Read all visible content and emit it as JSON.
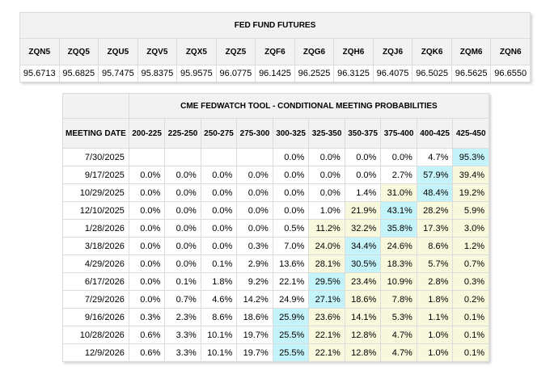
{
  "futures": {
    "title": "FED FUND FUTURES",
    "contracts": [
      {
        "code": "ZQN5",
        "price": "95.6713"
      },
      {
        "code": "ZQQ5",
        "price": "95.6825"
      },
      {
        "code": "ZQU5",
        "price": "95.7475"
      },
      {
        "code": "ZQV5",
        "price": "95.8375"
      },
      {
        "code": "ZQX5",
        "price": "95.9575"
      },
      {
        "code": "ZQZ5",
        "price": "96.0775"
      },
      {
        "code": "ZQF6",
        "price": "96.1425"
      },
      {
        "code": "ZQG6",
        "price": "96.2525"
      },
      {
        "code": "ZQH6",
        "price": "96.3125"
      },
      {
        "code": "ZQJ6",
        "price": "96.4075"
      },
      {
        "code": "ZQK6",
        "price": "96.5025"
      },
      {
        "code": "ZQM6",
        "price": "96.5625"
      },
      {
        "code": "ZQN6",
        "price": "96.6550"
      }
    ]
  },
  "probabilities": {
    "title": "CME FEDWATCH TOOL - CONDITIONAL MEETING PROBABILITIES",
    "date_header": "MEETING DATE",
    "ranges": [
      "200-225",
      "225-250",
      "250-275",
      "275-300",
      "300-325",
      "325-350",
      "350-375",
      "375-400",
      "400-425",
      "425-450"
    ],
    "colors": {
      "highlight_blue": "#c4f3f9",
      "highlight_yellow": "#f8f8dc",
      "header_gray": "#f2f2f2"
    },
    "rows": [
      {
        "date": "7/30/2025",
        "values": [
          "",
          "",
          "",
          "",
          "0.0%",
          "0.0%",
          "0.0%",
          "0.0%",
          "4.7%",
          "95.3%"
        ],
        "shade": [
          "w",
          "w",
          "w",
          "w",
          "w",
          "w",
          "w",
          "w",
          "w",
          "b"
        ]
      },
      {
        "date": "9/17/2025",
        "values": [
          "0.0%",
          "0.0%",
          "0.0%",
          "0.0%",
          "0.0%",
          "0.0%",
          "0.0%",
          "2.7%",
          "57.9%",
          "39.4%"
        ],
        "shade": [
          "w",
          "w",
          "w",
          "w",
          "w",
          "w",
          "w",
          "w",
          "b",
          "y"
        ]
      },
      {
        "date": "10/29/2025",
        "values": [
          "0.0%",
          "0.0%",
          "0.0%",
          "0.0%",
          "0.0%",
          "0.0%",
          "1.4%",
          "31.0%",
          "48.4%",
          "19.2%"
        ],
        "shade": [
          "w",
          "w",
          "w",
          "w",
          "w",
          "w",
          "w",
          "y",
          "b",
          "y"
        ]
      },
      {
        "date": "12/10/2025",
        "values": [
          "0.0%",
          "0.0%",
          "0.0%",
          "0.0%",
          "0.0%",
          "1.0%",
          "21.9%",
          "43.1%",
          "28.2%",
          "5.9%"
        ],
        "shade": [
          "w",
          "w",
          "w",
          "w",
          "w",
          "w",
          "y",
          "b",
          "y",
          "y"
        ]
      },
      {
        "date": "1/28/2026",
        "values": [
          "0.0%",
          "0.0%",
          "0.0%",
          "0.0%",
          "0.5%",
          "11.2%",
          "32.2%",
          "35.8%",
          "17.3%",
          "3.0%"
        ],
        "shade": [
          "w",
          "w",
          "w",
          "w",
          "w",
          "y",
          "y",
          "b",
          "y",
          "y"
        ]
      },
      {
        "date": "3/18/2026",
        "values": [
          "0.0%",
          "0.0%",
          "0.0%",
          "0.3%",
          "7.0%",
          "24.0%",
          "34.4%",
          "24.6%",
          "8.6%",
          "1.2%"
        ],
        "shade": [
          "w",
          "w",
          "w",
          "w",
          "w",
          "y",
          "b",
          "y",
          "y",
          "y"
        ]
      },
      {
        "date": "4/29/2026",
        "values": [
          "0.0%",
          "0.0%",
          "0.1%",
          "2.9%",
          "13.6%",
          "28.1%",
          "30.5%",
          "18.3%",
          "5.7%",
          "0.7%"
        ],
        "shade": [
          "w",
          "w",
          "w",
          "w",
          "w",
          "y",
          "b",
          "y",
          "y",
          "y"
        ]
      },
      {
        "date": "6/17/2026",
        "values": [
          "0.0%",
          "0.1%",
          "1.8%",
          "9.2%",
          "22.1%",
          "29.5%",
          "23.4%",
          "10.9%",
          "2.8%",
          "0.3%"
        ],
        "shade": [
          "w",
          "w",
          "w",
          "w",
          "w",
          "b",
          "y",
          "y",
          "y",
          "y"
        ]
      },
      {
        "date": "7/29/2026",
        "values": [
          "0.0%",
          "0.7%",
          "4.6%",
          "14.2%",
          "24.9%",
          "27.1%",
          "18.6%",
          "7.8%",
          "1.8%",
          "0.2%"
        ],
        "shade": [
          "w",
          "w",
          "w",
          "w",
          "w",
          "b",
          "y",
          "y",
          "y",
          "y"
        ]
      },
      {
        "date": "9/16/2026",
        "values": [
          "0.3%",
          "2.3%",
          "8.6%",
          "18.6%",
          "25.9%",
          "23.6%",
          "14.1%",
          "5.3%",
          "1.1%",
          "0.1%"
        ],
        "shade": [
          "w",
          "w",
          "w",
          "w",
          "b",
          "y",
          "y",
          "y",
          "y",
          "y"
        ]
      },
      {
        "date": "10/28/2026",
        "values": [
          "0.6%",
          "3.3%",
          "10.1%",
          "19.7%",
          "25.5%",
          "22.1%",
          "12.8%",
          "4.7%",
          "1.0%",
          "0.1%"
        ],
        "shade": [
          "w",
          "w",
          "w",
          "w",
          "b",
          "y",
          "y",
          "y",
          "y",
          "y"
        ]
      },
      {
        "date": "12/9/2026",
        "values": [
          "0.6%",
          "3.3%",
          "10.1%",
          "19.7%",
          "25.5%",
          "22.1%",
          "12.8%",
          "4.7%",
          "1.0%",
          "0.1%"
        ],
        "shade": [
          "w",
          "w",
          "w",
          "w",
          "b",
          "y",
          "y",
          "y",
          "y",
          "y"
        ]
      }
    ]
  }
}
